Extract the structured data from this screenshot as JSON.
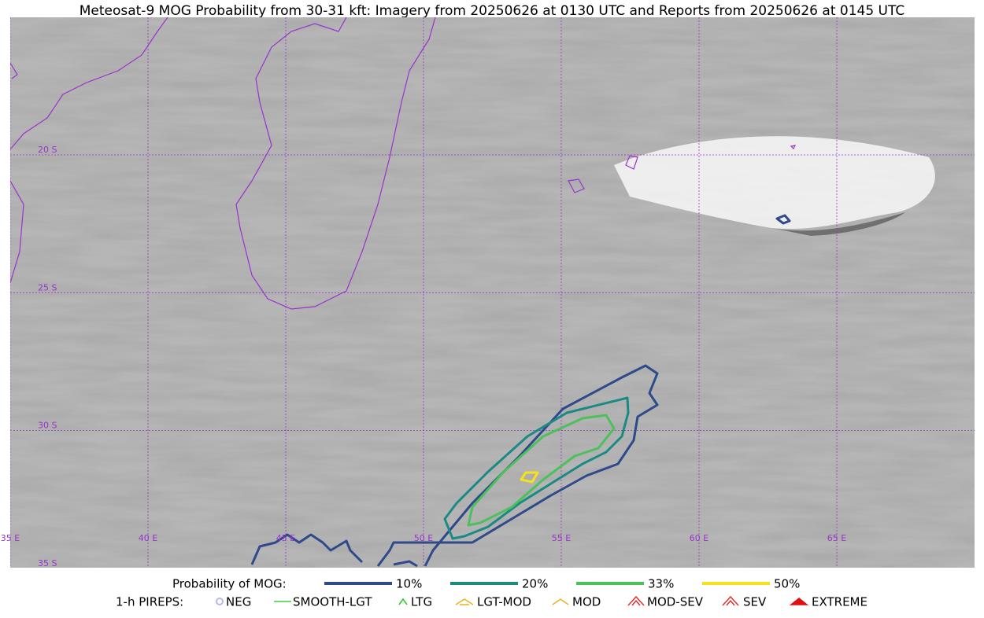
{
  "title": "Meteosat-9 MOG Probability from 30-31 kft: Imagery from 20250626 at 0130 UTC and Reports from 20250626 at 0145 UTC",
  "lat_labels": [
    "20 S",
    "25 S",
    "30 S",
    "35 S"
  ],
  "lon_labels": [
    "35 E",
    "40 E",
    "45 E",
    "50 E",
    "55 E",
    "60 E",
    "65 E"
  ],
  "legend": {
    "title": "Probability of MOG:",
    "items": [
      {
        "label": "10%",
        "color": "#2f4a8a"
      },
      {
        "label": "20%",
        "color": "#1a8a82"
      },
      {
        "label": "33%",
        "color": "#4cc05a"
      },
      {
        "label": "50%",
        "color": "#f5e21a"
      }
    ]
  },
  "pireps": {
    "title": "1-h PIREPS:",
    "items": [
      {
        "label": "NEG",
        "color": "#b8b8f0"
      },
      {
        "label": "SMOOTH-LGT",
        "color": "#40d040"
      },
      {
        "label": "LTG",
        "color": "#10d010"
      },
      {
        "label": "LGT-MOD",
        "color": "#f0b020"
      },
      {
        "label": "MOD",
        "color": "#f0b020"
      },
      {
        "label": "MOD-SEV",
        "color": "#e03030"
      },
      {
        "label": "SEV",
        "color": "#e03030"
      },
      {
        "label": "EXTREME",
        "color": "#e01010"
      }
    ]
  }
}
